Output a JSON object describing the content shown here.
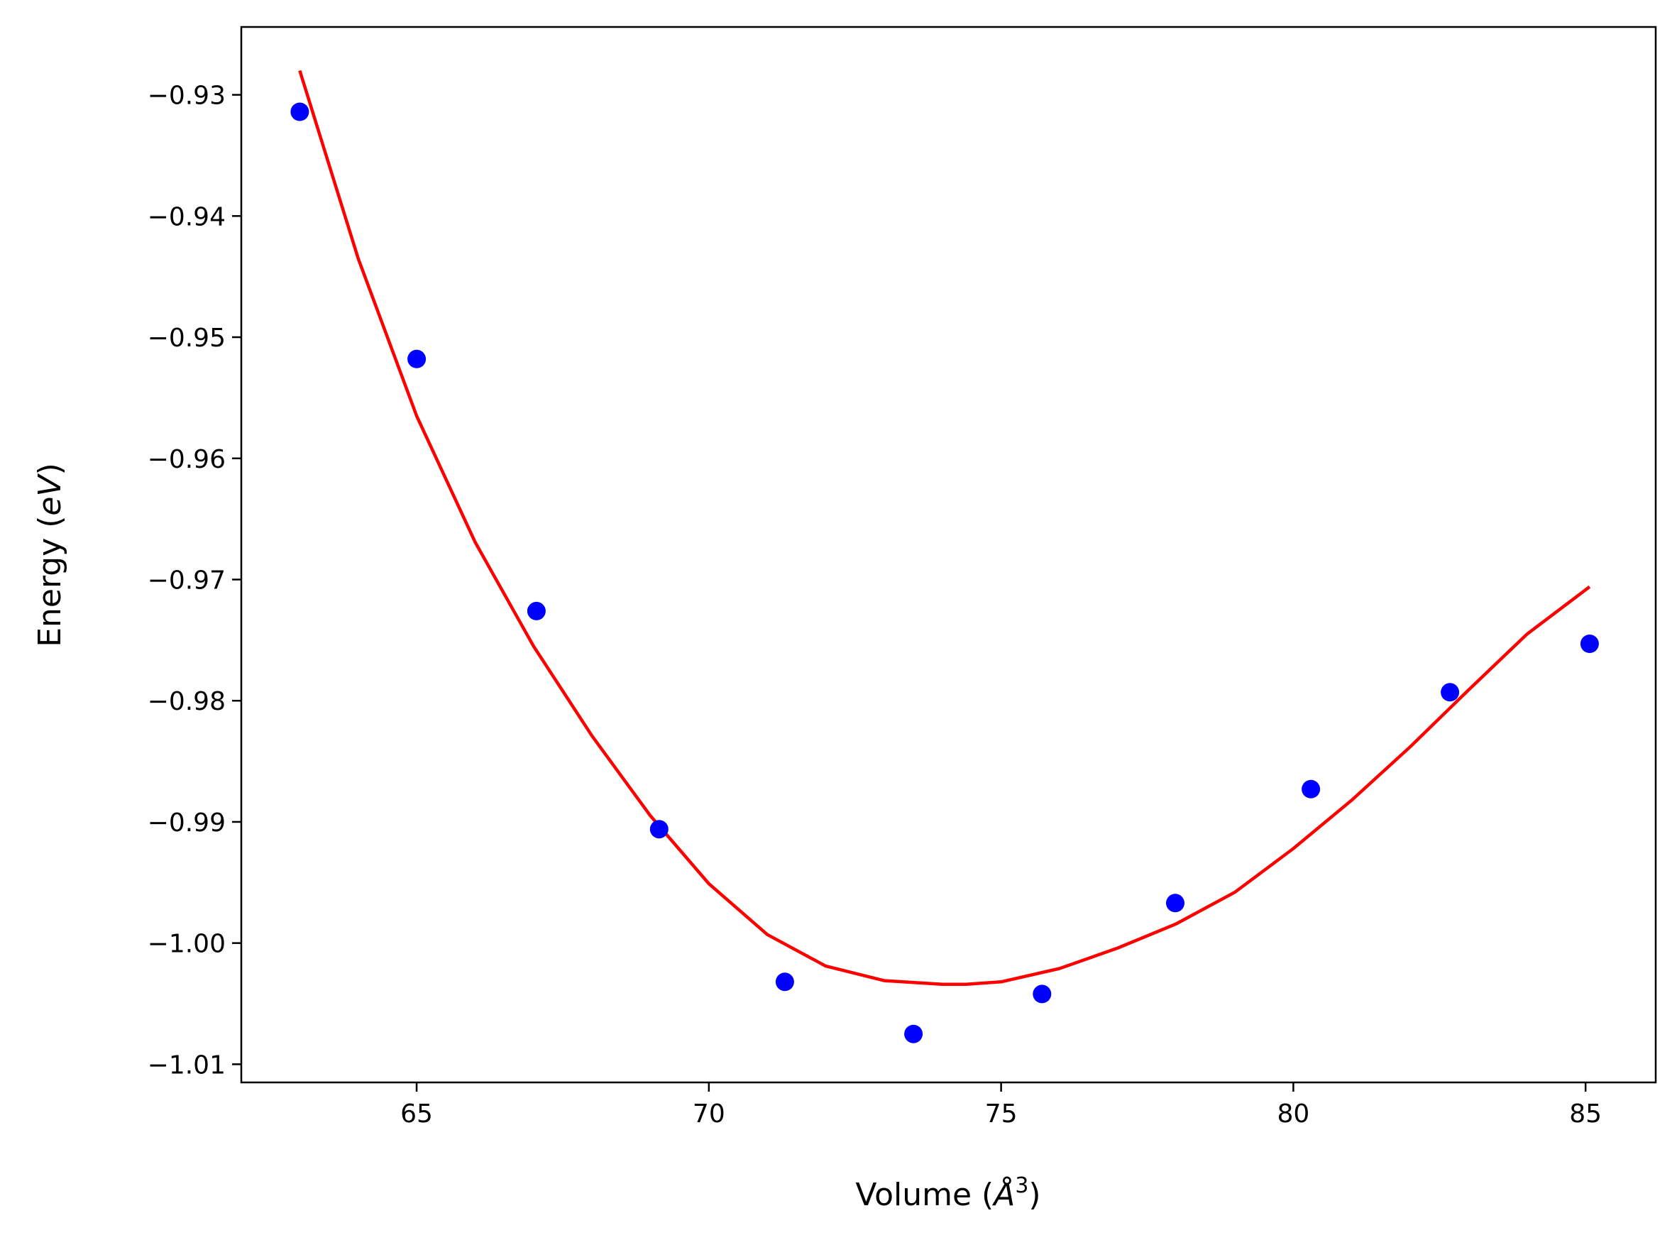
{
  "chart_data": {
    "type": "scatter",
    "xlabel": "Volume (",
    "xlabel_symbol": "Å",
    "xlabel_exp": "3",
    "xlabel_close": ")",
    "ylabel": "Energy (",
    "ylabel_unit": "eV",
    "ylabel_close": ")",
    "xlim": [
      62.0,
      86.2
    ],
    "ylim": [
      -1.0115,
      -0.9244
    ],
    "xticks": [
      65,
      70,
      75,
      80,
      85
    ],
    "xtick_labels": [
      "65",
      "70",
      "75",
      "80",
      "85"
    ],
    "yticks": [
      -0.93,
      -0.94,
      -0.95,
      -0.96,
      -0.97,
      -0.98,
      -0.99,
      -1.0,
      -1.01
    ],
    "ytick_labels": [
      "−0.93",
      "−0.94",
      "−0.95",
      "−0.96",
      "−0.97",
      "−0.98",
      "−0.99",
      "−1.00",
      "−1.01"
    ],
    "grid": false,
    "series": [
      {
        "kind": "scatter",
        "color": "#0000ff",
        "x": [
          63.0,
          65.0,
          67.05,
          69.15,
          71.3,
          73.5,
          75.7,
          77.98,
          80.3,
          82.68,
          85.07
        ],
        "y": [
          -0.9314,
          -0.9518,
          -0.9726,
          -0.9906,
          -1.0032,
          -1.0075,
          -1.0042,
          -0.9967,
          -0.9873,
          -0.9793,
          -0.9753
        ]
      },
      {
        "kind": "line",
        "color": "#ff0000",
        "x": [
          63.0,
          64.0,
          65.0,
          66.0,
          67.0,
          68.0,
          69.0,
          70.0,
          71.0,
          72.0,
          73.0,
          74.0,
          74.4,
          75.0,
          76.0,
          77.0,
          78.0,
          79.0,
          80.0,
          81.0,
          82.0,
          83.0,
          84.0,
          85.07
        ],
        "y": [
          -0.928,
          -0.9435,
          -0.9565,
          -0.9669,
          -0.9755,
          -0.9829,
          -0.9895,
          -0.9951,
          -0.9993,
          -1.0019,
          -1.0031,
          -1.0034,
          -1.0034,
          -1.0032,
          -1.0021,
          -1.0004,
          -0.9984,
          -0.9958,
          -0.9922,
          -0.9882,
          -0.9838,
          -0.9791,
          -0.9745,
          -0.9706
        ]
      }
    ]
  }
}
